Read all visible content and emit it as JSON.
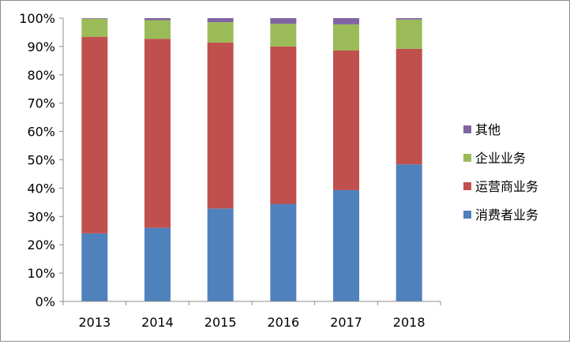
{
  "chart_data": {
    "type": "bar",
    "stacked": true,
    "percent": true,
    "title": "",
    "xlabel": "",
    "ylabel": "",
    "categories": [
      "2013",
      "2014",
      "2015",
      "2016",
      "2017",
      "2018"
    ],
    "ylim": [
      0,
      100
    ],
    "yticks": [
      "0%",
      "10%",
      "20%",
      "30%",
      "40%",
      "50%",
      "60%",
      "70%",
      "80%",
      "90%",
      "100%"
    ],
    "grid": false,
    "legend_position": "right",
    "series": [
      {
        "name": "消费者业务",
        "color": "#4f81bd",
        "values": [
          24.0,
          26.0,
          32.8,
          34.4,
          39.3,
          48.4
        ]
      },
      {
        "name": "运营商业务",
        "color": "#c0504d",
        "values": [
          69.4,
          66.7,
          58.6,
          55.6,
          49.3,
          40.8
        ]
      },
      {
        "name": "企业业务",
        "color": "#9bbb59",
        "values": [
          6.4,
          6.6,
          7.2,
          8.0,
          9.2,
          10.3
        ]
      },
      {
        "name": "其他",
        "color": "#8064a2",
        "values": [
          0.2,
          0.7,
          1.4,
          2.0,
          2.2,
          0.5
        ]
      }
    ]
  }
}
